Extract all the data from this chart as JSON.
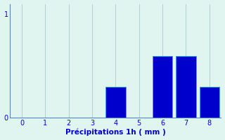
{
  "categories": [
    0,
    1,
    2,
    3,
    4,
    5,
    6,
    7,
    8
  ],
  "values": [
    0,
    0,
    0,
    0,
    0.3,
    0,
    0.6,
    0.6,
    0.3
  ],
  "bar_color": "#0000cc",
  "bar_edge_color": "#4499ff",
  "background_color": "#e0f5f0",
  "xlabel": "Précipitations 1h ( mm )",
  "xlabel_color": "#0000cc",
  "ylim": [
    0,
    1.1
  ],
  "xlim": [
    -0.5,
    8.5
  ],
  "yticks": [
    0,
    1
  ],
  "ytick_labels": [
    "0",
    "1"
  ],
  "xticks": [
    0,
    1,
    2,
    3,
    4,
    5,
    6,
    7,
    8
  ],
  "grid_color": "#aacccc",
  "axis_color": "#5588aa",
  "tick_color": "#0000cc",
  "bar_width": 0.85,
  "xlabel_fontsize": 7.5,
  "tick_fontsize": 7
}
